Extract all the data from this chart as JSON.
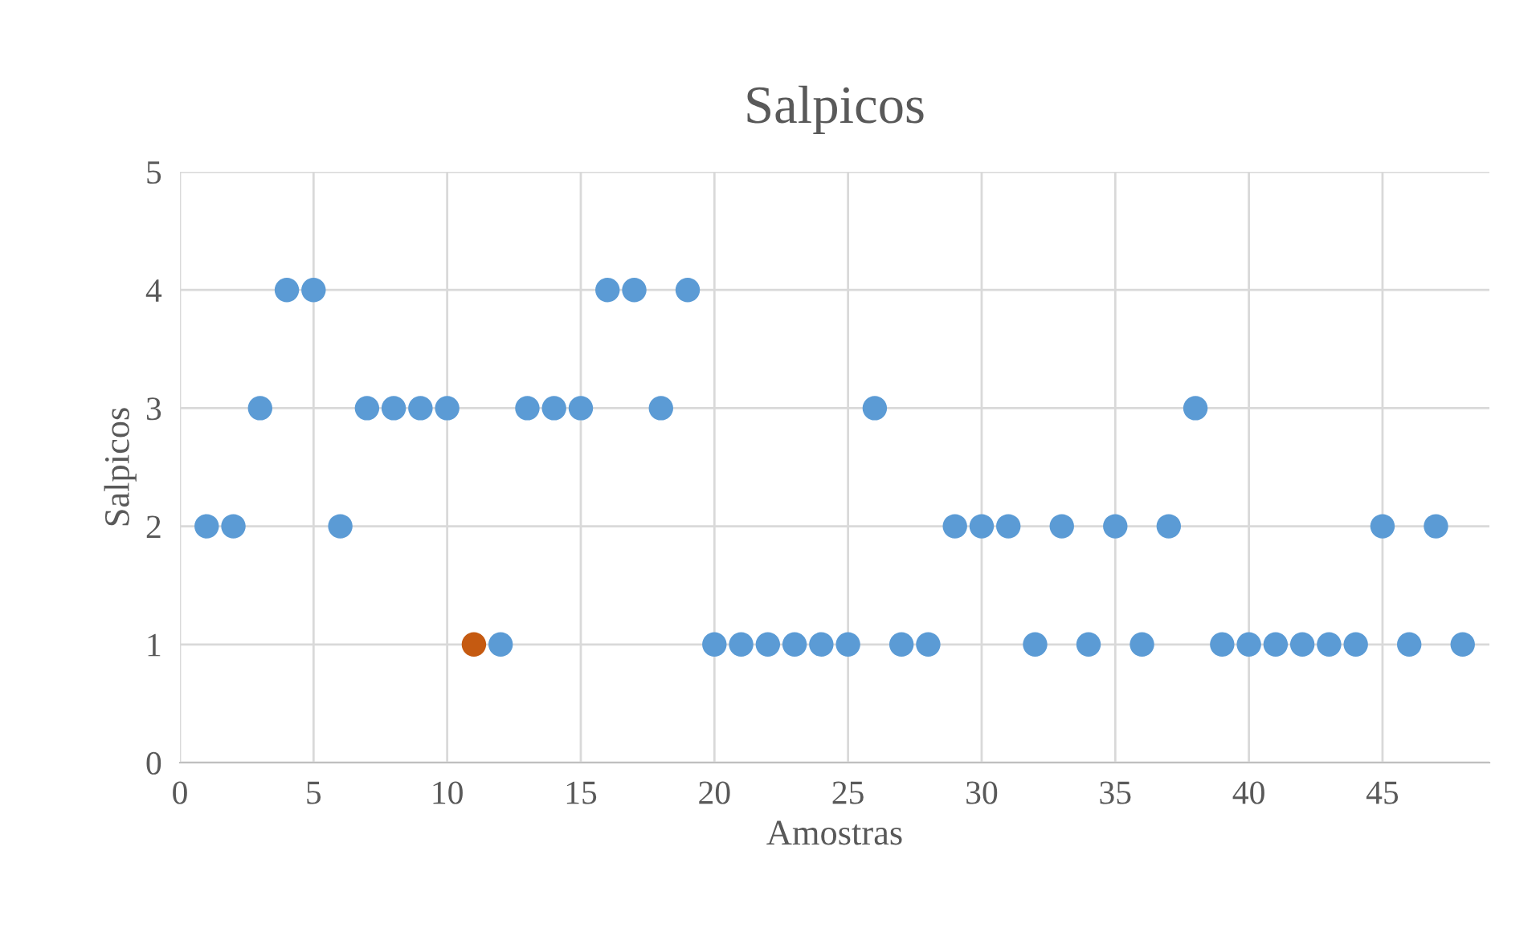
{
  "chart_data": {
    "type": "scatter",
    "title": "Salpicos",
    "xlabel": "Amostras",
    "ylabel": "Salpicos",
    "x": [
      1,
      2,
      3,
      4,
      5,
      6,
      7,
      8,
      9,
      10,
      11,
      12,
      13,
      14,
      15,
      16,
      17,
      18,
      19,
      20,
      21,
      22,
      23,
      24,
      25,
      26,
      27,
      28,
      29,
      30,
      31,
      32,
      33,
      34,
      35,
      36,
      37,
      38,
      39,
      40,
      41,
      42,
      43,
      44,
      45,
      46,
      47,
      48
    ],
    "values": [
      2,
      2,
      3,
      4,
      4,
      2,
      3,
      3,
      3,
      3,
      1,
      1,
      3,
      3,
      3,
      4,
      4,
      3,
      4,
      1,
      1,
      1,
      1,
      1,
      1,
      3,
      1,
      1,
      2,
      2,
      2,
      1,
      2,
      1,
      2,
      1,
      2,
      3,
      1,
      1,
      1,
      1,
      1,
      1,
      2,
      1,
      2,
      1
    ],
    "colors": [
      "#5b9bd5",
      "#5b9bd5",
      "#5b9bd5",
      "#5b9bd5",
      "#5b9bd5",
      "#5b9bd5",
      "#5b9bd5",
      "#5b9bd5",
      "#5b9bd5",
      "#5b9bd5",
      "#c55a11",
      "#5b9bd5",
      "#5b9bd5",
      "#5b9bd5",
      "#5b9bd5",
      "#5b9bd5",
      "#5b9bd5",
      "#5b9bd5",
      "#5b9bd5",
      "#5b9bd5",
      "#5b9bd5",
      "#5b9bd5",
      "#5b9bd5",
      "#5b9bd5",
      "#5b9bd5",
      "#5b9bd5",
      "#5b9bd5",
      "#5b9bd5",
      "#5b9bd5",
      "#5b9bd5",
      "#5b9bd5",
      "#5b9bd5",
      "#5b9bd5",
      "#5b9bd5",
      "#5b9bd5",
      "#5b9bd5",
      "#5b9bd5",
      "#5b9bd5",
      "#5b9bd5",
      "#5b9bd5",
      "#5b9bd5",
      "#5b9bd5",
      "#5b9bd5",
      "#5b9bd5",
      "#5b9bd5",
      "#5b9bd5",
      "#5b9bd5",
      "#5b9bd5"
    ],
    "xlim": [
      0,
      49
    ],
    "xticks": [
      0,
      5,
      10,
      15,
      20,
      25,
      30,
      35,
      40,
      45
    ],
    "ylim": [
      0,
      5
    ],
    "yticks": [
      0,
      1,
      2,
      3,
      4,
      5
    ],
    "grid": true,
    "marker": "circle"
  }
}
